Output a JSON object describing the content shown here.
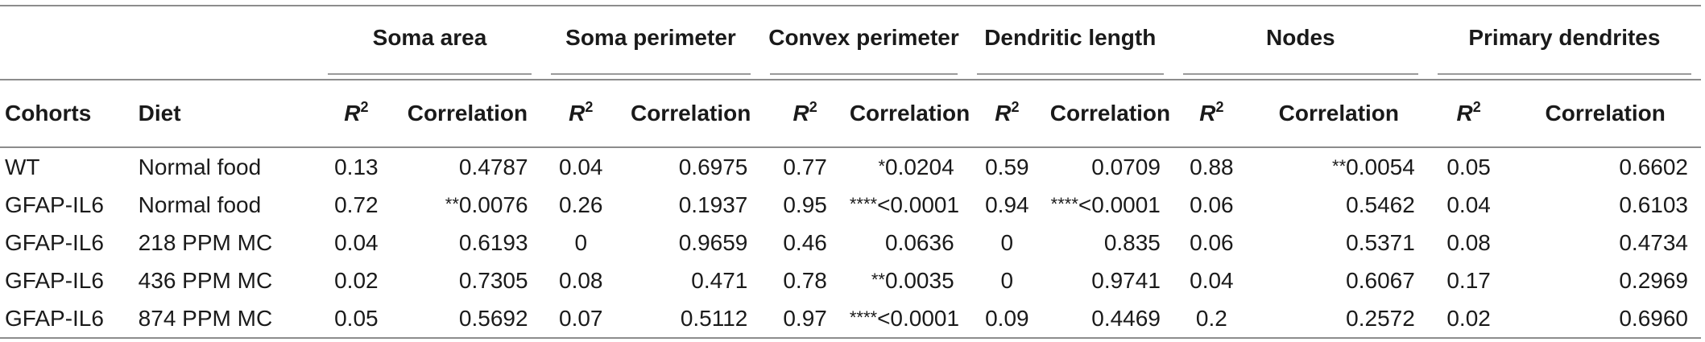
{
  "table": {
    "groups": [
      {
        "id": "soma-area",
        "label": "Soma area"
      },
      {
        "id": "soma-perimeter",
        "label": "Soma perimeter"
      },
      {
        "id": "convex-perimeter",
        "label": "Convex perimeter"
      },
      {
        "id": "dendritic-length",
        "label": "Dendritic length"
      },
      {
        "id": "nodes",
        "label": "Nodes"
      },
      {
        "id": "primary-dendrites",
        "label": "Primary dendrites"
      }
    ],
    "col_cohorts": "Cohorts",
    "col_diet": "Diet",
    "r2_base": "R",
    "r2_exp": "2",
    "correlation_label": "Correlation",
    "rows": [
      {
        "cohort": "WT",
        "diet": "Normal food",
        "cells": [
          {
            "r2": "0.13",
            "stars": "",
            "corr": "0.4787"
          },
          {
            "r2": "0.04",
            "stars": "",
            "corr": "0.6975"
          },
          {
            "r2": "0.77",
            "stars": "*",
            "corr": "0.0204"
          },
          {
            "r2": "0.59",
            "stars": "",
            "corr": "0.0709"
          },
          {
            "r2": "0.88",
            "stars": "**",
            "corr": "0.0054"
          },
          {
            "r2": "0.05",
            "stars": "",
            "corr": "0.6602"
          }
        ]
      },
      {
        "cohort": "GFAP-IL6",
        "diet": "Normal food",
        "cells": [
          {
            "r2": "0.72",
            "stars": "**",
            "corr": "0.0076"
          },
          {
            "r2": "0.26",
            "stars": "",
            "corr": "0.1937"
          },
          {
            "r2": "0.95",
            "stars": "****",
            "corr": "<0.0001"
          },
          {
            "r2": "0.94",
            "stars": "****",
            "corr": "<0.0001"
          },
          {
            "r2": "0.06",
            "stars": "",
            "corr": "0.5462"
          },
          {
            "r2": "0.04",
            "stars": "",
            "corr": "0.6103"
          }
        ]
      },
      {
        "cohort": "GFAP-IL6",
        "diet": "218 PPM MC",
        "cells": [
          {
            "r2": "0.04",
            "stars": "",
            "corr": "0.6193"
          },
          {
            "r2": "0",
            "stars": "",
            "corr": "0.9659"
          },
          {
            "r2": "0.46",
            "stars": "",
            "corr": "0.0636"
          },
          {
            "r2": "0",
            "stars": "",
            "corr": "0.835"
          },
          {
            "r2": "0.06",
            "stars": "",
            "corr": "0.5371"
          },
          {
            "r2": "0.08",
            "stars": "",
            "corr": "0.4734"
          }
        ]
      },
      {
        "cohort": "GFAP-IL6",
        "diet": "436 PPM MC",
        "cells": [
          {
            "r2": "0.02",
            "stars": "",
            "corr": "0.7305"
          },
          {
            "r2": "0.08",
            "stars": "",
            "corr": "0.471"
          },
          {
            "r2": "0.78",
            "stars": "**",
            "corr": "0.0035"
          },
          {
            "r2": "0",
            "stars": "",
            "corr": "0.9741"
          },
          {
            "r2": "0.04",
            "stars": "",
            "corr": "0.6067"
          },
          {
            "r2": "0.17",
            "stars": "",
            "corr": "0.2969"
          }
        ]
      },
      {
        "cohort": "GFAP-IL6",
        "diet": "874 PPM MC",
        "cells": [
          {
            "r2": "0.05",
            "stars": "",
            "corr": "0.5692"
          },
          {
            "r2": "0.07",
            "stars": "",
            "corr": "0.5112"
          },
          {
            "r2": "0.97",
            "stars": "****",
            "corr": "<0.0001"
          },
          {
            "r2": "0.09",
            "stars": "",
            "corr": "0.4469"
          },
          {
            "r2": "0.2",
            "stars": "",
            "corr": "0.2572"
          },
          {
            "r2": "0.02",
            "stars": "",
            "corr": "0.6960"
          }
        ]
      }
    ]
  }
}
